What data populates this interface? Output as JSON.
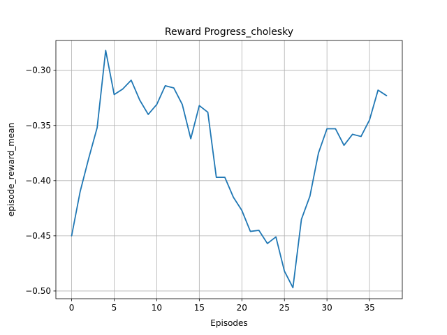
{
  "chart_data": {
    "type": "line",
    "title": "Reward Progress_cholesky",
    "xlabel": "Episodes",
    "ylabel": "episode_reward_mean",
    "xlim": [
      -1.85,
      38.85
    ],
    "ylim": [
      -0.507,
      -0.273
    ],
    "xticks": [
      0,
      5,
      10,
      15,
      20,
      25,
      30,
      35
    ],
    "xtick_labels": [
      "0",
      "5",
      "10",
      "15",
      "20",
      "25",
      "30",
      "35"
    ],
    "yticks": [
      -0.3,
      -0.35,
      -0.4,
      -0.45,
      -0.5
    ],
    "ytick_labels": [
      "−0.30",
      "−0.35",
      "−0.40",
      "−0.45",
      "−0.50"
    ],
    "grid": true,
    "series": [
      {
        "color": "#1f77b4",
        "x": [
          0,
          1,
          2,
          3,
          4,
          5,
          6,
          7,
          8,
          9,
          10,
          11,
          12,
          13,
          14,
          15,
          16,
          17,
          18,
          19,
          20,
          21,
          22,
          23,
          24,
          25,
          26,
          27,
          28,
          29,
          30,
          31,
          32,
          33,
          34,
          35,
          36,
          37
        ],
        "y": [
          -0.45,
          -0.41,
          -0.38,
          -0.352,
          -0.282,
          -0.322,
          -0.317,
          -0.309,
          -0.327,
          -0.34,
          -0.331,
          -0.314,
          -0.316,
          -0.331,
          -0.362,
          -0.332,
          -0.338,
          -0.397,
          -0.397,
          -0.415,
          -0.427,
          -0.446,
          -0.445,
          -0.457,
          -0.451,
          -0.482,
          -0.497,
          -0.435,
          -0.414,
          -0.375,
          -0.353,
          -0.353,
          -0.368,
          -0.358,
          -0.36,
          -0.345,
          -0.318,
          -0.323
        ]
      }
    ]
  }
}
